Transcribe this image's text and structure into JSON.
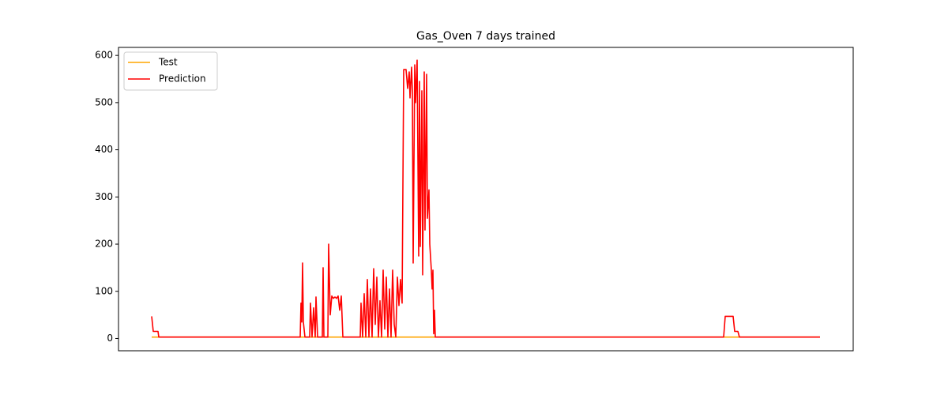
{
  "chart_data": {
    "type": "line",
    "title": "Gas_Oven 7 days trained",
    "ylim": [
      -26,
      617
    ],
    "yticks": [
      0,
      100,
      200,
      300,
      400,
      500,
      600
    ],
    "xlim": [
      -42,
      888
    ],
    "legend": "upper left",
    "series": [
      {
        "name": "Test",
        "color": "#ffa500",
        "x": [
          0,
          846
        ],
        "values": [
          3,
          3
        ]
      },
      {
        "name": "Prediction",
        "color": "#ff0000",
        "x": [
          0,
          2,
          8,
          9,
          188,
          189,
          190,
          191,
          192,
          194,
          200,
          201,
          203,
          205,
          207,
          208,
          210,
          216,
          217,
          218,
          223,
          224,
          226,
          228,
          230,
          232,
          234,
          236,
          238,
          240,
          242,
          264,
          265,
          267,
          269,
          271,
          273,
          275,
          277,
          279,
          281,
          283,
          285,
          287,
          289,
          291,
          293,
          295,
          297,
          299,
          301,
          303,
          305,
          307,
          309,
          311,
          313,
          315,
          317,
          319,
          322,
          324,
          326,
          327,
          329,
          330,
          331,
          333,
          334,
          336,
          338,
          339,
          340,
          342,
          343,
          345,
          346,
          348,
          349,
          351,
          352,
          354,
          355,
          356,
          357,
          358,
          359,
          724,
          726,
          736,
          738,
          742,
          744,
          846
        ],
        "values": [
          47,
          15,
          15,
          3,
          3,
          75,
          35,
          160,
          35,
          3,
          3,
          75,
          3,
          65,
          3,
          88,
          3,
          3,
          150,
          3,
          3,
          200,
          50,
          90,
          85,
          88,
          85,
          90,
          60,
          90,
          3,
          3,
          75,
          3,
          95,
          3,
          125,
          3,
          105,
          3,
          148,
          30,
          130,
          3,
          80,
          3,
          145,
          20,
          130,
          3,
          105,
          3,
          145,
          30,
          3,
          130,
          70,
          125,
          75,
          570,
          570,
          530,
          565,
          510,
          575,
          525,
          160,
          580,
          500,
          590,
          175,
          545,
          195,
          525,
          135,
          565,
          230,
          560,
          255,
          315,
          200,
          145,
          105,
          145,
          10,
          60,
          3,
          3,
          47,
          47,
          15,
          15,
          3,
          3
        ]
      }
    ]
  }
}
